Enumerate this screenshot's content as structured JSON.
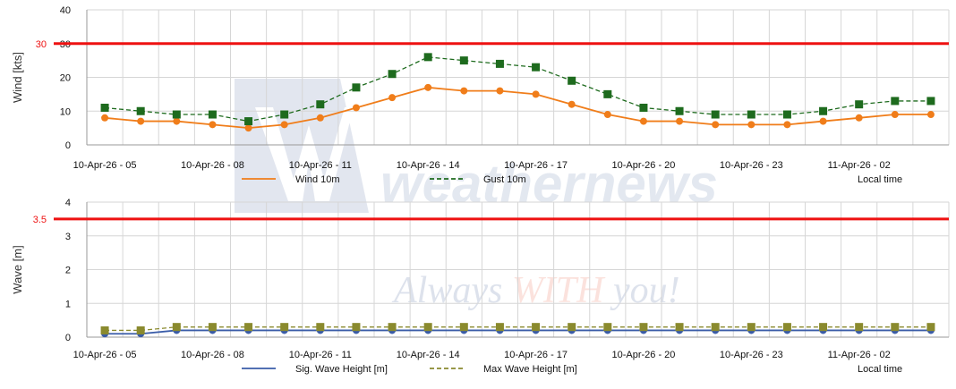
{
  "watermark": {
    "brand": "weathernews",
    "tagline_1": "Always ",
    "tagline_2": "WITH",
    "tagline_3": " you!"
  },
  "x_tick_labels": [
    "10-Apr-26 - 05",
    "10-Apr-26 - 08",
    "10-Apr-26 - 11",
    "10-Apr-26 - 14",
    "10-Apr-26 - 17",
    "10-Apr-26 - 20",
    "10-Apr-26 - 23",
    "11-Apr-26 - 02"
  ],
  "chart_data": [
    {
      "type": "line",
      "title": "",
      "xlabel": "",
      "ylabel": "Wind [kts]",
      "ylim": [
        0,
        40
      ],
      "yticks": [
        0,
        10,
        20,
        30,
        40
      ],
      "grid": true,
      "legend_position": "bottom",
      "x": [
        "10-Apr-26 - 05",
        "10-Apr-26 - 06",
        "10-Apr-26 - 07",
        "10-Apr-26 - 08",
        "10-Apr-26 - 09",
        "10-Apr-26 - 10",
        "10-Apr-26 - 11",
        "10-Apr-26 - 12",
        "10-Apr-26 - 13",
        "10-Apr-26 - 14",
        "10-Apr-26 - 15",
        "10-Apr-26 - 16",
        "10-Apr-26 - 17",
        "10-Apr-26 - 18",
        "10-Apr-26 - 19",
        "10-Apr-26 - 20",
        "10-Apr-26 - 21",
        "10-Apr-26 - 22",
        "10-Apr-26 - 23",
        "11-Apr-26 - 00",
        "11-Apr-26 - 01",
        "11-Apr-26 - 02",
        "11-Apr-26 - 03",
        "11-Apr-26 - 04"
      ],
      "threshold": {
        "value": 30,
        "label": "30",
        "color": "#ee1111"
      },
      "series": [
        {
          "name": "Wind 10m",
          "color": "#f07d1a",
          "style": "solid",
          "marker": "circle",
          "values": [
            8,
            7,
            7,
            6,
            5,
            6,
            8,
            11,
            14,
            17,
            16,
            16,
            15,
            12,
            9,
            7,
            7,
            6,
            6,
            6,
            7,
            8,
            9,
            9
          ]
        },
        {
          "name": "Gust 10m",
          "color": "#1e6b1e",
          "style": "dashed",
          "marker": "square",
          "values": [
            11,
            10,
            9,
            9,
            7,
            9,
            12,
            17,
            21,
            26,
            25,
            24,
            23,
            19,
            15,
            11,
            10,
            9,
            9,
            9,
            10,
            12,
            13,
            13
          ]
        }
      ],
      "legend_note": "Local time"
    },
    {
      "type": "line",
      "title": "",
      "xlabel": "",
      "ylabel": "Wave [m]",
      "ylim": [
        0,
        4
      ],
      "yticks": [
        0,
        1,
        2,
        3,
        4
      ],
      "grid": true,
      "legend_position": "bottom",
      "x": [
        "10-Apr-26 - 05",
        "10-Apr-26 - 06",
        "10-Apr-26 - 07",
        "10-Apr-26 - 08",
        "10-Apr-26 - 09",
        "10-Apr-26 - 10",
        "10-Apr-26 - 11",
        "10-Apr-26 - 12",
        "10-Apr-26 - 13",
        "10-Apr-26 - 14",
        "10-Apr-26 - 15",
        "10-Apr-26 - 16",
        "10-Apr-26 - 17",
        "10-Apr-26 - 18",
        "10-Apr-26 - 19",
        "10-Apr-26 - 20",
        "10-Apr-26 - 21",
        "10-Apr-26 - 22",
        "10-Apr-26 - 23",
        "11-Apr-26 - 00",
        "11-Apr-26 - 01",
        "11-Apr-26 - 02",
        "11-Apr-26 - 03",
        "11-Apr-26 - 04"
      ],
      "threshold": {
        "value": 3.5,
        "label": "3.5",
        "color": "#ee1111"
      },
      "series": [
        {
          "name": "Sig. Wave Height [m]",
          "color": "#3a5ca8",
          "style": "solid",
          "marker": "circle",
          "values": [
            0.1,
            0.1,
            0.2,
            0.2,
            0.2,
            0.2,
            0.2,
            0.2,
            0.2,
            0.2,
            0.2,
            0.2,
            0.2,
            0.2,
            0.2,
            0.2,
            0.2,
            0.2,
            0.2,
            0.2,
            0.2,
            0.2,
            0.2,
            0.2
          ]
        },
        {
          "name": "Max Wave Height [m]",
          "color": "#8a8a2e",
          "style": "dashed",
          "marker": "square",
          "values": [
            0.2,
            0.2,
            0.3,
            0.3,
            0.3,
            0.3,
            0.3,
            0.3,
            0.3,
            0.3,
            0.3,
            0.3,
            0.3,
            0.3,
            0.3,
            0.3,
            0.3,
            0.3,
            0.3,
            0.3,
            0.3,
            0.3,
            0.3,
            0.3
          ]
        }
      ],
      "legend_note": "Local time"
    }
  ]
}
